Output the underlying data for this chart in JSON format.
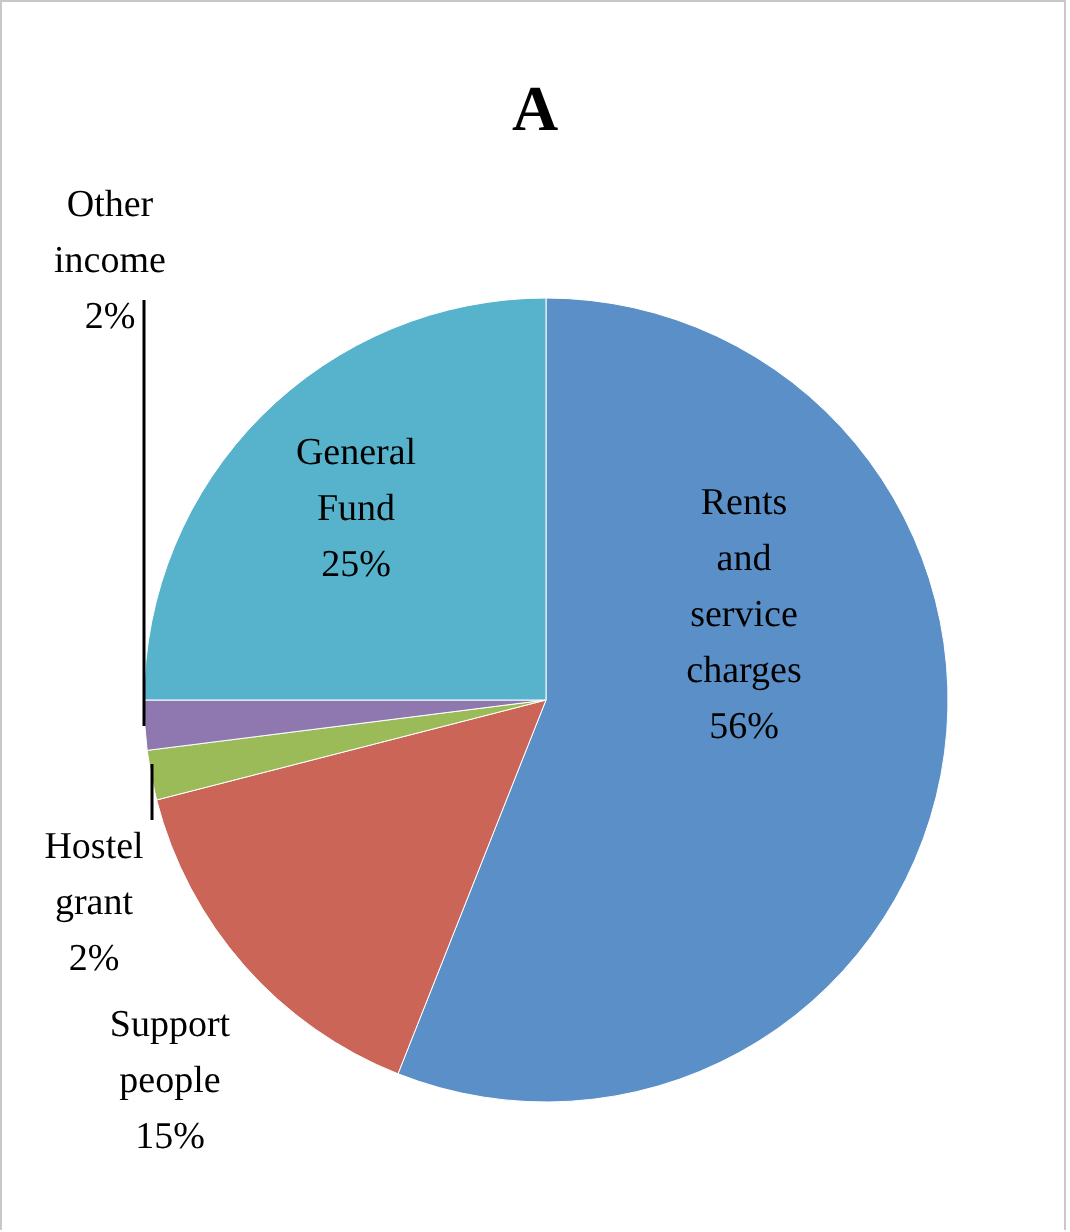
{
  "chart_data": {
    "type": "pie",
    "title": "A",
    "categories": [
      "Rents and service charges",
      "Support people",
      "Hostel grant",
      "Other income",
      "General Fund"
    ],
    "values": [
      56,
      15,
      2,
      2,
      25
    ],
    "colors": [
      "#5b8fc7",
      "#cb6558",
      "#9bbb59",
      "#8f78b0",
      "#56b3cb"
    ],
    "value_labels": [
      "56%",
      "15%",
      "2%",
      "2%",
      "25%"
    ],
    "legend": false
  }
}
